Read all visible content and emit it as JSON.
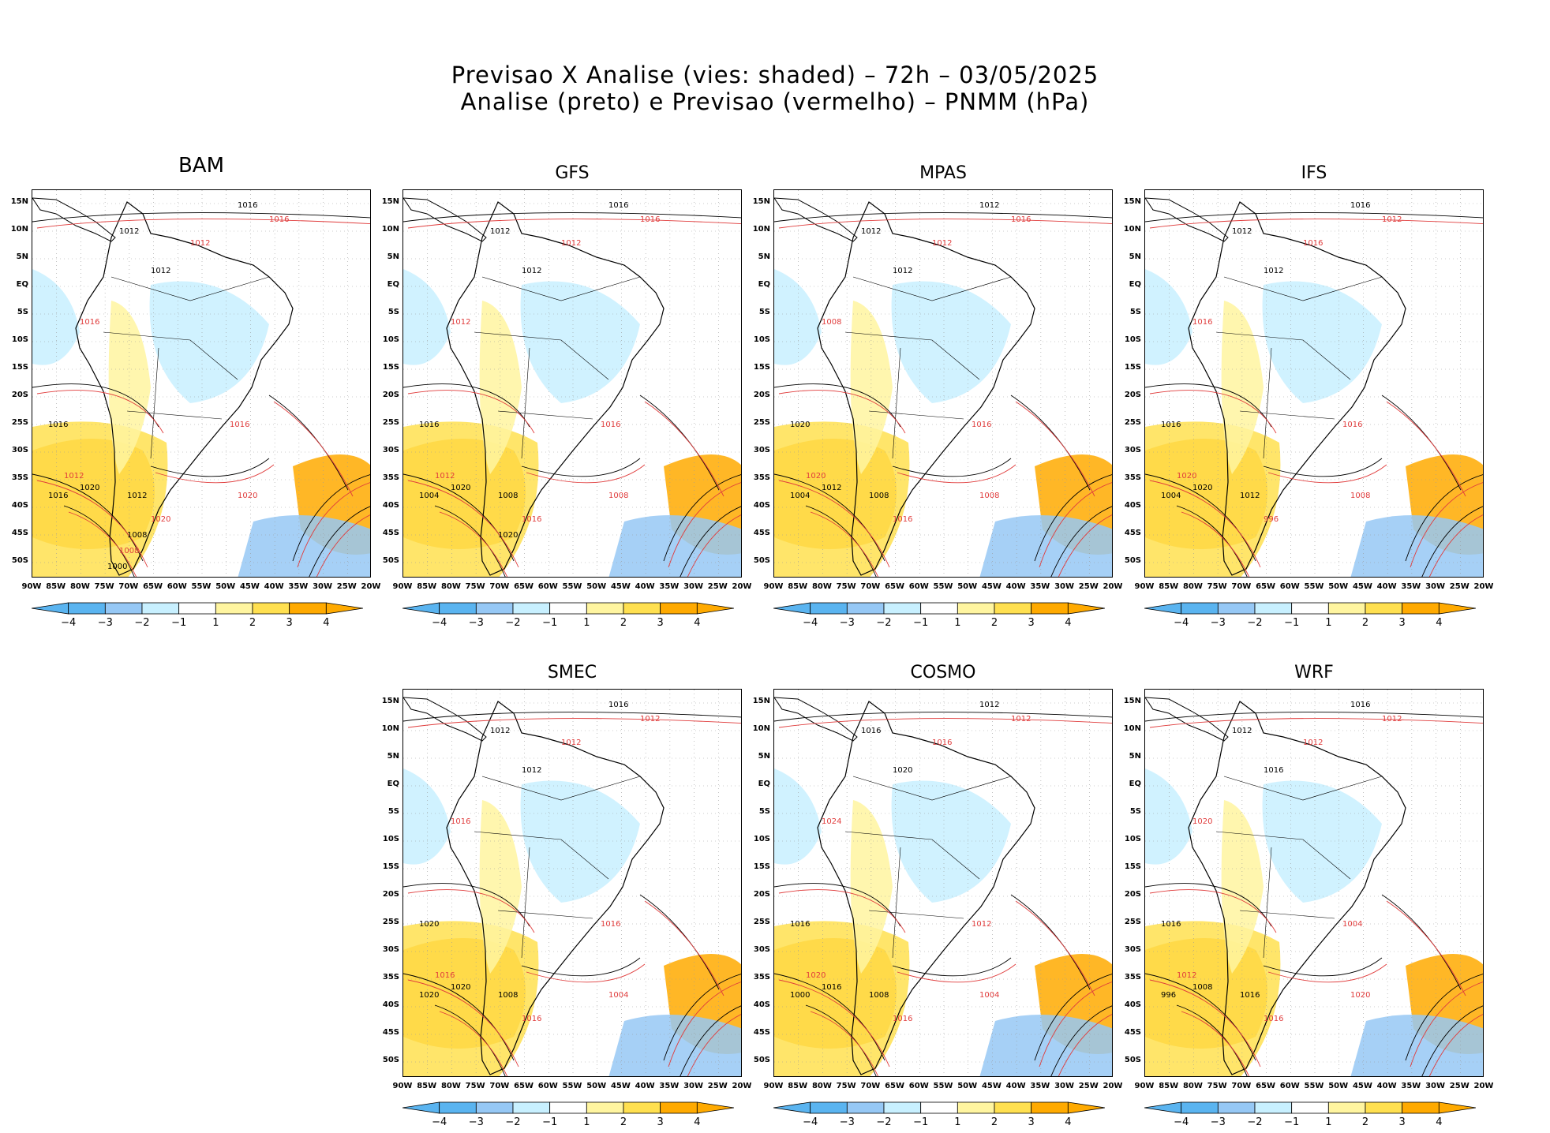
{
  "header": {
    "title_line1": "Previsao X Analise (vies: shaded) – 72h – 03/05/2025",
    "title_line2": "Analise (preto) e Previsao (vermelho) – PNMM (hPa)"
  },
  "colors": {
    "neg4": "#5ab4f0",
    "neg3": "#96c8f5",
    "neg2": "#c8f0ff",
    "pos2": "#fff5a0",
    "pos3": "#ffe050",
    "pos4": "#ffaa00",
    "analysis_contour": "#000000",
    "forecast_contour": "#e03c3c",
    "grid": "#999999"
  },
  "colorbar": {
    "labels": [
      "−4",
      "−3",
      "−2",
      "−1",
      "1",
      "2",
      "3",
      "4"
    ]
  },
  "axes": {
    "lat_labels": [
      "15N",
      "10N",
      "5N",
      "EQ",
      "5S",
      "10S",
      "15S",
      "20S",
      "25S",
      "30S",
      "35S",
      "40S",
      "45S",
      "50S"
    ],
    "lon_labels": [
      "90W",
      "85W",
      "80W",
      "75W",
      "70W",
      "65W",
      "60W",
      "55W",
      "50W",
      "45W",
      "40W",
      "35W",
      "30W",
      "25W",
      "20W"
    ]
  },
  "panels": [
    {
      "name": "BAM",
      "big": true,
      "contour_labels": [
        "1016",
        "1016",
        "1012",
        "1012",
        "1012",
        "1016",
        "1016",
        "1012",
        "1020",
        "1016",
        "1012",
        "1020",
        "1016",
        "1020",
        "1008",
        "1008",
        "1000"
      ]
    },
    {
      "name": "GFS",
      "big": false,
      "contour_labels": [
        "1016",
        "1016",
        "1012",
        "1012",
        "1012",
        "1012",
        "1016",
        "1012",
        "1020",
        "1016",
        "1008",
        "1008",
        "1004",
        "1016",
        "1020"
      ]
    },
    {
      "name": "MPAS",
      "big": false,
      "contour_labels": [
        "1012",
        "1016",
        "1012",
        "1012",
        "1012",
        "1008",
        "1020",
        "1020",
        "1012",
        "1016",
        "1008",
        "1008",
        "1004",
        "1016"
      ]
    },
    {
      "name": "IFS",
      "big": false,
      "contour_labels": [
        "1016",
        "1012",
        "1012",
        "1016",
        "1012",
        "1016",
        "1016",
        "1020",
        "1020",
        "1016",
        "1012",
        "1008",
        "1004",
        "996"
      ]
    },
    {
      "name": "SMEC",
      "big": false,
      "contour_labels": [
        "1016",
        "1012",
        "1012",
        "1012",
        "1012",
        "1016",
        "1020",
        "1016",
        "1020",
        "1016",
        "1008",
        "1004",
        "1020",
        "1016"
      ]
    },
    {
      "name": "COSMO",
      "big": false,
      "contour_labels": [
        "1012",
        "1012",
        "1016",
        "1016",
        "1020",
        "1024",
        "1016",
        "1020",
        "1016",
        "1012",
        "1008",
        "1004",
        "1000",
        "1016"
      ]
    },
    {
      "name": "WRF",
      "big": false,
      "contour_labels": [
        "1016",
        "1012",
        "1012",
        "1012",
        "1016",
        "1020",
        "1016",
        "1012",
        "1008",
        "1004",
        "1016",
        "1020",
        "996",
        "1016"
      ]
    }
  ]
}
